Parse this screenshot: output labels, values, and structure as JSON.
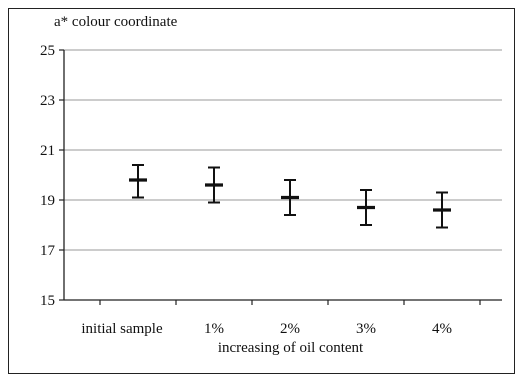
{
  "chart_data": {
    "type": "scatter",
    "ylabel": "a* colour coordinate",
    "xlabel": "increasing of oil content",
    "categories": [
      "initial sample",
      "1%",
      "2%",
      "3%",
      "4%"
    ],
    "series": [
      {
        "values": [
          19.8,
          19.6,
          19.1,
          18.7,
          18.6
        ],
        "error_low": [
          19.1,
          18.9,
          18.4,
          18.0,
          17.9
        ],
        "error_high": [
          20.4,
          20.3,
          19.8,
          19.4,
          19.3
        ]
      }
    ],
    "yticks": [
      "15",
      "17",
      "19",
      "21",
      "23",
      "25"
    ],
    "ylim": [
      15,
      25
    ],
    "grid": true,
    "legend": "none",
    "colors": {
      "marker": "#111111",
      "grid": "#9a9a9a",
      "axis": "#222222"
    }
  }
}
